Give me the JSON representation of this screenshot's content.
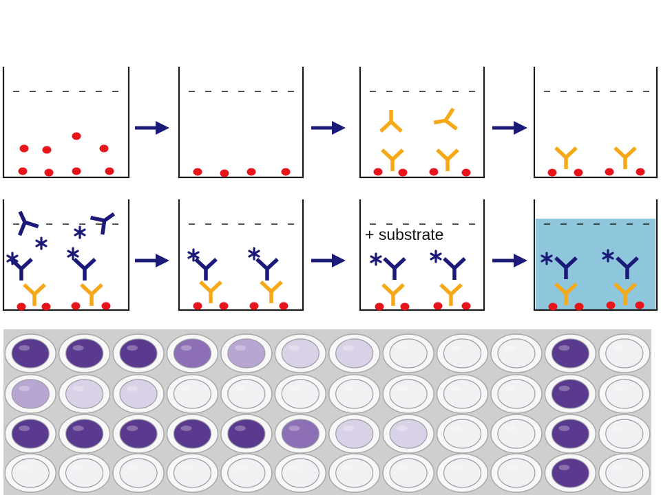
{
  "diagram": {
    "substrate_label": "+ substrate"
  },
  "colors": {
    "well_outline": "#1a1a1a",
    "antigen": "#e8141c",
    "capture_antibody": "#f5a919",
    "detection_antibody": "#1c1a78",
    "arrow": "#1c1a78",
    "colored_product": "#8ec7dc",
    "plate_background": "#cfcfcf"
  },
  "plate": {
    "rows": [
      [
        "strong",
        "strong",
        "strong",
        "medium",
        "light",
        "faint",
        "faint",
        "clear",
        "clear",
        "clear",
        "strong",
        "clear"
      ],
      [
        "light",
        "faint",
        "faint",
        "clear",
        "clear",
        "clear",
        "clear",
        "clear",
        "clear",
        "clear",
        "strong",
        "clear"
      ],
      [
        "strong",
        "strong",
        "strong",
        "strong",
        "strong",
        "medium",
        "faint",
        "faint",
        "clear",
        "clear",
        "strong",
        "clear"
      ],
      [
        "clear",
        "clear",
        "clear",
        "clear",
        "clear",
        "clear",
        "clear",
        "clear",
        "clear",
        "clear",
        "strong",
        "clear"
      ]
    ],
    "intensity_colors": {
      "strong": "#5a3a8e",
      "medium": "#8c6fb4",
      "light": "#b8a6d2",
      "faint": "#d9d1e6",
      "clear": "#f1f1f3"
    }
  }
}
